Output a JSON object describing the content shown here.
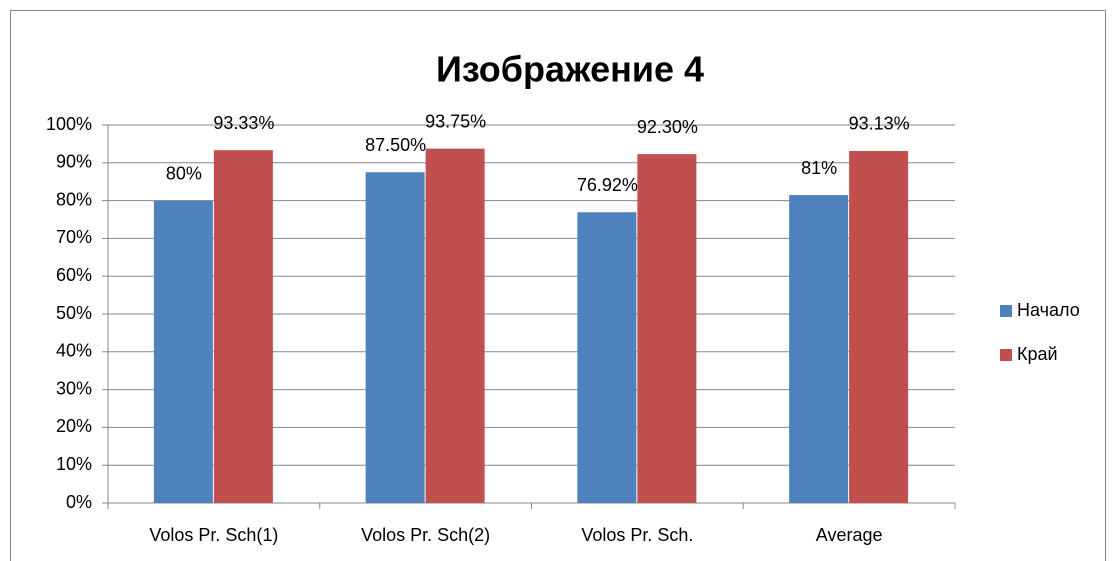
{
  "chart_data": {
    "type": "bar",
    "title": "Изображение 4",
    "categories": [
      "Volos Pr. Sch(1)",
      "Volos Pr. Sch(2)",
      "Volos Pr. Sch.",
      "Average"
    ],
    "series": [
      {
        "name": "Начало",
        "color": "#4f81bd",
        "values": [
          80,
          87.5,
          76.92,
          81.47
        ],
        "value_labels": [
          "80%",
          "87.50%",
          "76.92%",
          "81%"
        ]
      },
      {
        "name": "Край",
        "color": "#c0504d",
        "values": [
          93.33,
          93.75,
          92.3,
          93.13
        ],
        "value_labels": [
          "93.33%",
          "93.75%",
          "92.30%",
          "93.13%"
        ]
      }
    ],
    "ylim": [
      0,
      100
    ],
    "yticks": [
      {
        "value": 0,
        "label": "0%"
      },
      {
        "value": 10,
        "label": "10%"
      },
      {
        "value": 20,
        "label": "20%"
      },
      {
        "value": 30,
        "label": "30%"
      },
      {
        "value": 40,
        "label": "40%"
      },
      {
        "value": 50,
        "label": "50%"
      },
      {
        "value": 60,
        "label": "60%"
      },
      {
        "value": 70,
        "label": "70%"
      },
      {
        "value": 80,
        "label": "80%"
      },
      {
        "value": 90,
        "label": "90%"
      },
      {
        "value": 100,
        "label": "100%"
      }
    ],
    "grid": true,
    "legend": "right"
  }
}
